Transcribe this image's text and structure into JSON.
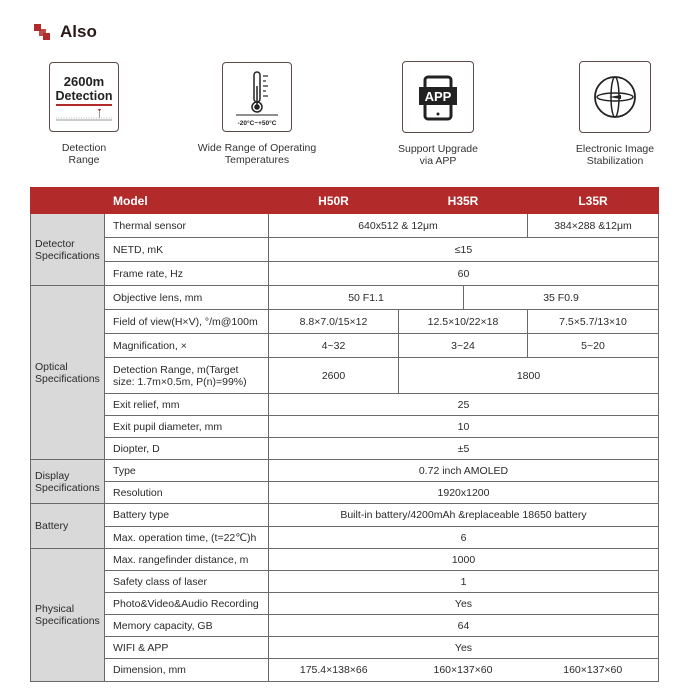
{
  "title": "Also",
  "brand_color": "#b22a2a",
  "features": [
    {
      "icon": "detection-range-icon",
      "icon_text": [
        "2600m",
        "Detection"
      ],
      "caption": [
        "Detection",
        "Range"
      ]
    },
    {
      "icon": "thermometer-icon",
      "icon_text": [
        "-20°C~+50°C"
      ],
      "caption": [
        "Wide Range of Operating",
        "Temperatures"
      ]
    },
    {
      "icon": "app-phone-icon",
      "icon_text": [
        "APP"
      ],
      "caption": [
        "Support Upgrade",
        "via APP"
      ]
    },
    {
      "icon": "image-stabilization-icon",
      "icon_text": [],
      "caption": [
        "Electronic Image",
        "Stabilization"
      ]
    }
  ],
  "table": {
    "header": {
      "label": "Model",
      "models": [
        "H50R",
        "H35R",
        "L35R"
      ]
    },
    "groups": [
      {
        "name": [
          "Detector",
          "Specifications"
        ],
        "rows": [
          {
            "param": "Thermal sensor",
            "cells": [
              {
                "text": "640x512 & 12μm",
                "span": 3
              },
              {
                "text": "384×288 &12μm",
                "span": 1
              }
            ]
          },
          {
            "param": "NETD, mK",
            "cells": [
              {
                "text": "≤15",
                "span": 4
              }
            ]
          },
          {
            "param": "Frame rate, Hz",
            "cells": [
              {
                "text": "60",
                "span": 4
              }
            ]
          }
        ]
      },
      {
        "name": [
          "Optical",
          "Specifications"
        ],
        "rows": [
          {
            "param": "Objective lens, mm",
            "cells": [
              {
                "text": "50 F1.1",
                "span": 2
              },
              {
                "text": "35 F0.9",
                "span": 2
              }
            ]
          },
          {
            "param": "Field of view(H×V), °/m@100m",
            "cells": [
              {
                "text": "8.8×7.0/15×12",
                "span": 1
              },
              {
                "text": "12.5×10/22×18",
                "span": 2
              },
              {
                "text": "7.5×5.7/13×10",
                "span": 1
              }
            ]
          },
          {
            "param": "Magnification, ×",
            "cells": [
              {
                "text": "4~32",
                "span": 1
              },
              {
                "text": "3~24",
                "span": 2
              },
              {
                "text": "5~20",
                "span": 1
              }
            ]
          },
          {
            "param": "Detection Range, m(Target size: 1.7m×0.5m, P(n)=99%)",
            "cells": [
              {
                "text": "2600",
                "span": 1
              },
              {
                "text": "1800",
                "span": 3
              }
            ]
          },
          {
            "param": "Exit relief, mm",
            "cells": [
              {
                "text": "25",
                "span": 4
              }
            ]
          },
          {
            "param": "Exit pupil diameter, mm",
            "cells": [
              {
                "text": "10",
                "span": 4
              }
            ]
          },
          {
            "param": "Diopter, D",
            "cells": [
              {
                "text": "±5",
                "span": 4
              }
            ]
          }
        ]
      },
      {
        "name": [
          "Display",
          "Specifications"
        ],
        "rows": [
          {
            "param": "Type",
            "cells": [
              {
                "text": "0.72 inch AMOLED",
                "span": 4
              }
            ]
          },
          {
            "param": "Resolution",
            "cells": [
              {
                "text": "1920x1200",
                "span": 4
              }
            ]
          }
        ]
      },
      {
        "name": [
          "Battery"
        ],
        "rows": [
          {
            "param": "Battery type",
            "cells": [
              {
                "text": "Built-in battery/4200mAh &replaceable 18650 battery",
                "span": 4
              }
            ]
          },
          {
            "param": "Max. operation time, (t=22℃)h",
            "cells": [
              {
                "text": "6",
                "span": 4
              }
            ]
          }
        ]
      },
      {
        "name": [
          "Physical",
          "Specifications"
        ],
        "rows": [
          {
            "param": "Max. rangefinder distance, m",
            "cells": [
              {
                "text": "1000",
                "span": 4
              }
            ]
          },
          {
            "param": "Safety class of laser",
            "cells": [
              {
                "text": "1",
                "span": 4
              }
            ]
          },
          {
            "param": "Photo&Video&Audio Recording",
            "cells": [
              {
                "text": "Yes",
                "span": 4
              }
            ]
          },
          {
            "param": "Memory capacity, GB",
            "cells": [
              {
                "text": "64",
                "span": 4
              }
            ]
          },
          {
            "param": "WIFI & APP",
            "cells": [
              {
                "text": "Yes",
                "span": 4
              }
            ]
          },
          {
            "param": "Dimension, mm",
            "cells": [
              {
                "text": "175.4×138×66",
                "span": 1
              },
              {
                "text": "160×137×60",
                "span": 2
              },
              {
                "text": "160×137×60",
                "span": 1
              }
            ]
          }
        ]
      }
    ]
  }
}
